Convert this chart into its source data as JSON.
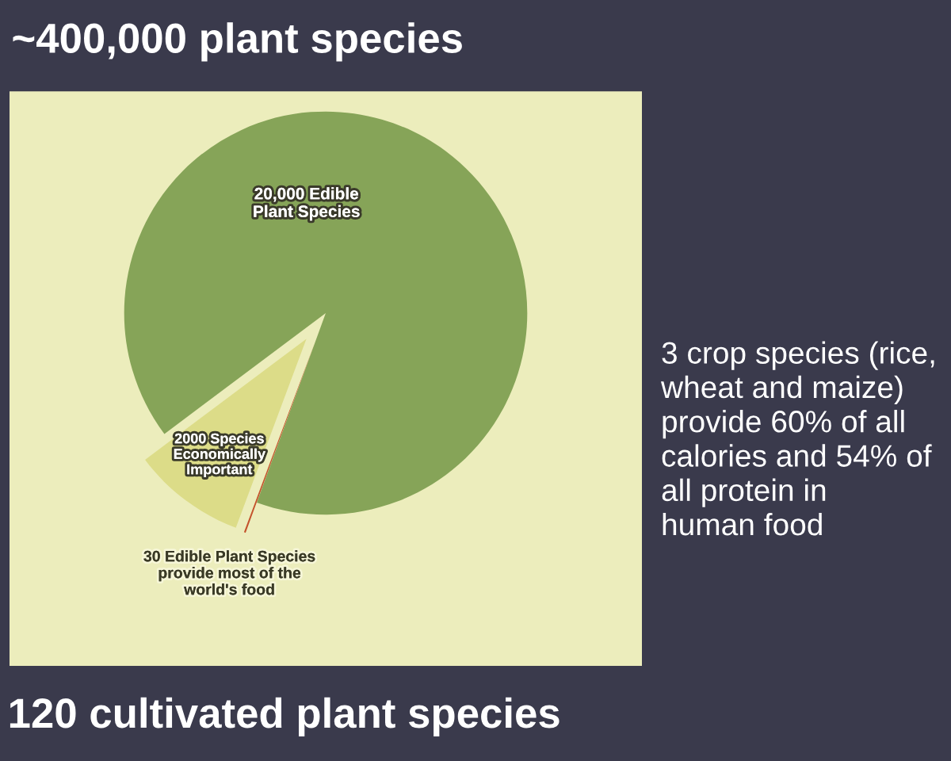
{
  "chart_data": {
    "type": "pie",
    "title": "~400,000 plant species",
    "categories": [
      "20,000 Edible\nPlant Species",
      "2000 Species\nEconomically\nImportant",
      "30 Edible Plant Species\nprovide most of the\nworld's food"
    ],
    "values": [
      20000,
      2000,
      30
    ],
    "colors": [
      "#86a458",
      "#dcdc88",
      "#c4532c"
    ],
    "annotations": [
      "3 crop species (rice,\nwheat and maize)\nprovide 60% of all\ncalories and 54% of\nall protein in\nhuman food",
      "120 cultivated plant species"
    ]
  }
}
